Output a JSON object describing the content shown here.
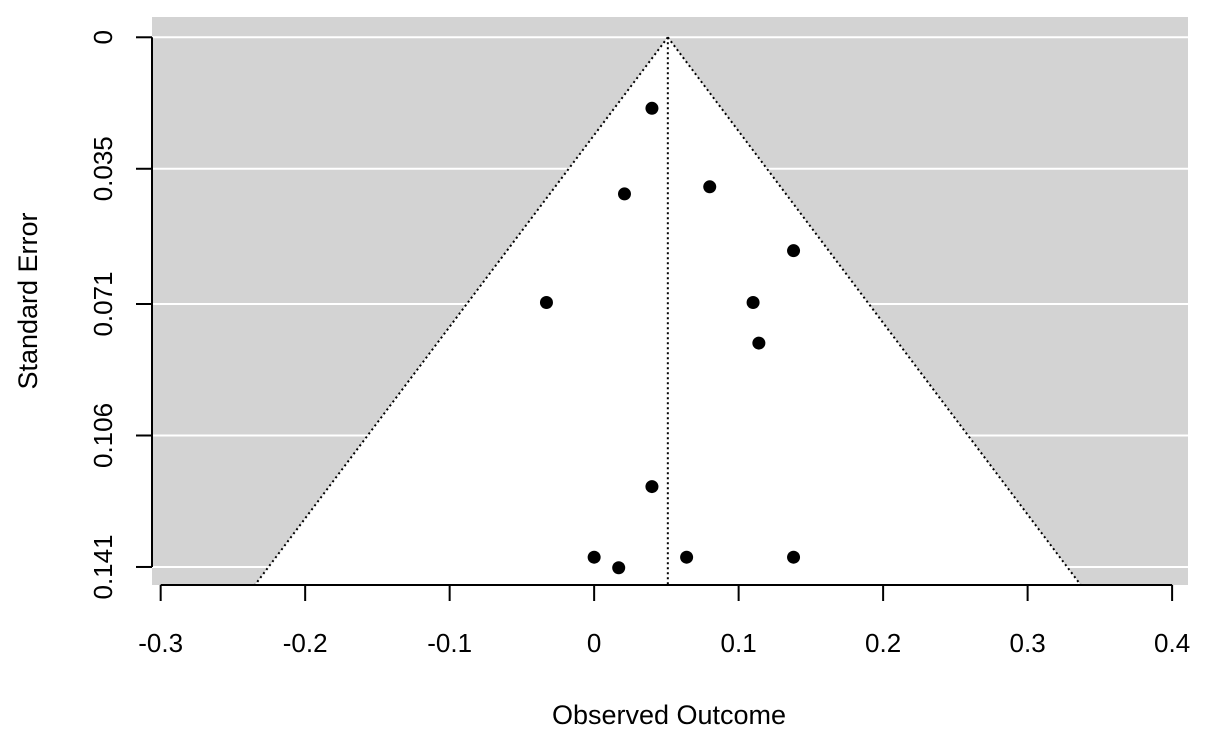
{
  "chart_data": {
    "type": "scatter",
    "subtype": "funnel",
    "xlabel": "Observed Outcome",
    "ylabel": "Standard Error",
    "xlim": [
      -0.306,
      0.411
    ],
    "ylim": [
      0.1458,
      -0.0054
    ],
    "y_reversed": true,
    "x_ticks": [
      -0.3,
      -0.2,
      -0.1,
      0,
      0.1,
      0.2,
      0.3,
      0.4
    ],
    "x_tick_labels": [
      "-0.3",
      "-0.2",
      "-0.1",
      "0",
      "0.1",
      "0.2",
      "0.3",
      "0.4"
    ],
    "y_ticks": [
      0,
      0.035,
      0.071,
      0.106,
      0.141
    ],
    "y_tick_labels": [
      "0",
      "0.035",
      "0.071",
      "0.106",
      "0.141"
    ],
    "grid": "horizontal",
    "background": "#d3d3d3",
    "funnel_fill": "#ffffff",
    "point_color": "#000000",
    "summary_estimate": 0.051,
    "funnel_z": 1.96,
    "points": [
      {
        "x": 0.04,
        "y": 0.0189
      },
      {
        "x": 0.08,
        "y": 0.0398
      },
      {
        "x": 0.021,
        "y": 0.0417
      },
      {
        "x": 0.138,
        "y": 0.0568
      },
      {
        "x": -0.033,
        "y": 0.0706
      },
      {
        "x": 0.11,
        "y": 0.0706
      },
      {
        "x": 0.114,
        "y": 0.0814
      },
      {
        "x": 0.04,
        "y": 0.1196
      },
      {
        "x": 0.0,
        "y": 0.1384
      },
      {
        "x": 0.064,
        "y": 0.1384
      },
      {
        "x": 0.138,
        "y": 0.1384
      },
      {
        "x": 0.017,
        "y": 0.1412
      }
    ]
  }
}
